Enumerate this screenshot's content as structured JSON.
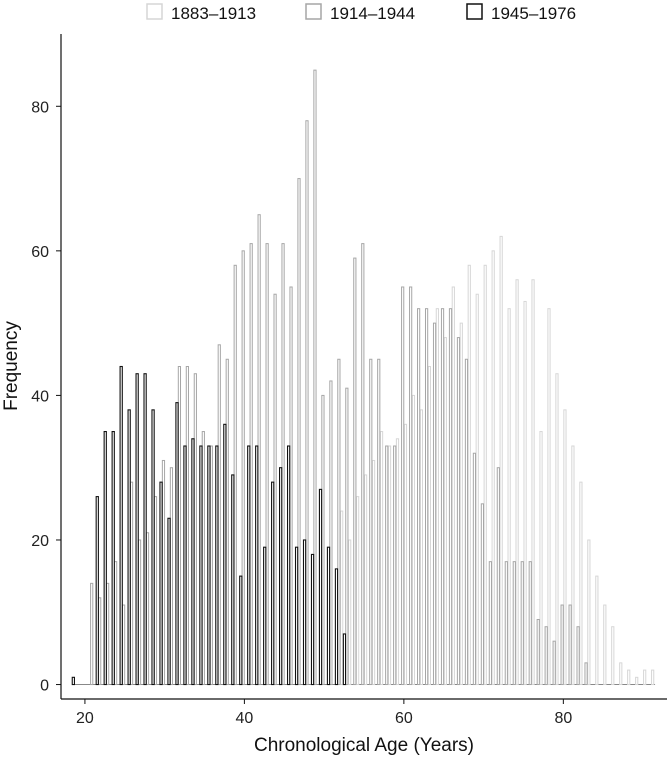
{
  "chart_data": {
    "type": "bar",
    "xlabel": "Chronological Age (Years)",
    "ylabel": "Frequency",
    "xlim": [
      17,
      93
    ],
    "ylim": [
      -2,
      90
    ],
    "x_ticks": [
      20,
      40,
      60,
      80
    ],
    "y_ticks": [
      0,
      20,
      40,
      60,
      80
    ],
    "grid": false,
    "legend_placement": "top",
    "series": [
      {
        "name": "1883–1913",
        "color": "#d6d6d6",
        "x": [
          19,
          20,
          21,
          22,
          23,
          24,
          25,
          26,
          27,
          28,
          29,
          30,
          31,
          32,
          33,
          34,
          35,
          36,
          37,
          38,
          39,
          40,
          41,
          42,
          43,
          44,
          45,
          46,
          47,
          48,
          49,
          50,
          51,
          52,
          53,
          54,
          55,
          56,
          57,
          58,
          59,
          60,
          61,
          62,
          63,
          64,
          65,
          66,
          67,
          68,
          69,
          70,
          71,
          72,
          73,
          74,
          75,
          76,
          77,
          78,
          79,
          80,
          81,
          82,
          83,
          84,
          85,
          86,
          87,
          88,
          89,
          90,
          91
        ],
        "values": [
          0,
          0,
          0,
          0,
          0,
          0,
          0,
          0,
          0,
          0,
          0,
          0,
          0,
          0,
          0,
          0,
          0,
          0,
          0,
          0,
          0,
          0,
          0,
          0,
          0,
          0,
          0,
          0,
          0,
          0,
          0,
          0,
          0,
          24,
          20,
          26,
          29,
          31,
          35,
          33,
          34,
          36,
          40,
          38,
          44,
          52,
          48,
          55,
          50,
          58,
          54,
          58,
          60,
          62,
          52,
          56,
          53,
          56,
          35,
          52,
          43,
          38,
          33,
          28,
          20,
          15,
          11,
          8,
          3,
          2,
          1,
          2,
          2
        ]
      },
      {
        "name": "1914–1944",
        "color": "#a6a6a6",
        "x": [
          19,
          20,
          21,
          22,
          23,
          24,
          25,
          26,
          27,
          28,
          29,
          30,
          31,
          32,
          33,
          34,
          35,
          36,
          37,
          38,
          39,
          40,
          41,
          42,
          43,
          44,
          45,
          46,
          47,
          48,
          49,
          50,
          51,
          52,
          53,
          54,
          55,
          56,
          57,
          58,
          59,
          60,
          61,
          62,
          63,
          64,
          65,
          66,
          67,
          68,
          69,
          70,
          71,
          72,
          73,
          74,
          75,
          76,
          77,
          78,
          79,
          80,
          81,
          82,
          83,
          84,
          85,
          86,
          87,
          88,
          89,
          90,
          91
        ],
        "values": [
          0,
          0,
          14,
          12,
          14,
          17,
          11,
          28,
          20,
          21,
          26,
          31,
          30,
          44,
          44,
          43,
          35,
          33,
          47,
          45,
          58,
          60,
          61,
          65,
          61,
          54,
          61,
          55,
          70,
          78,
          85,
          40,
          42,
          45,
          41,
          59,
          61,
          45,
          45,
          33,
          33,
          55,
          55,
          52,
          52,
          50,
          52,
          52,
          48,
          45,
          32,
          25,
          17,
          30,
          17,
          17,
          17,
          17,
          9,
          8,
          6,
          11,
          11,
          8,
          3,
          0,
          0,
          0,
          0,
          0,
          0,
          0,
          0
        ]
      },
      {
        "name": "1945–1976",
        "color": "#111111",
        "x": [
          19,
          20,
          21,
          22,
          23,
          24,
          25,
          26,
          27,
          28,
          29,
          30,
          31,
          32,
          33,
          34,
          35,
          36,
          37,
          38,
          39,
          40,
          41,
          42,
          43,
          44,
          45,
          46,
          47,
          48,
          49,
          50,
          51,
          52,
          53,
          54,
          55,
          56,
          57,
          58,
          59,
          60,
          61,
          62,
          63,
          64,
          65,
          66,
          67,
          68,
          69,
          70,
          71,
          72,
          73,
          74,
          75,
          76,
          77,
          78,
          79,
          80,
          81,
          82,
          83,
          84,
          85,
          86,
          87,
          88,
          89,
          90,
          91
        ],
        "values": [
          1,
          0,
          0,
          26,
          35,
          35,
          44,
          38,
          43,
          43,
          38,
          28,
          23,
          39,
          33,
          34,
          33,
          33,
          33,
          36,
          29,
          15,
          33,
          33,
          19,
          28,
          30,
          33,
          19,
          20,
          18,
          27,
          19,
          16,
          7,
          0,
          0,
          0,
          0,
          0,
          0,
          0,
          0,
          0,
          0,
          0,
          0,
          0,
          0,
          0,
          0,
          0,
          0,
          0,
          0,
          0,
          0,
          0,
          0,
          0,
          0,
          0,
          0,
          0,
          0,
          0,
          0,
          0,
          0,
          0,
          0,
          0,
          0
        ]
      }
    ]
  }
}
